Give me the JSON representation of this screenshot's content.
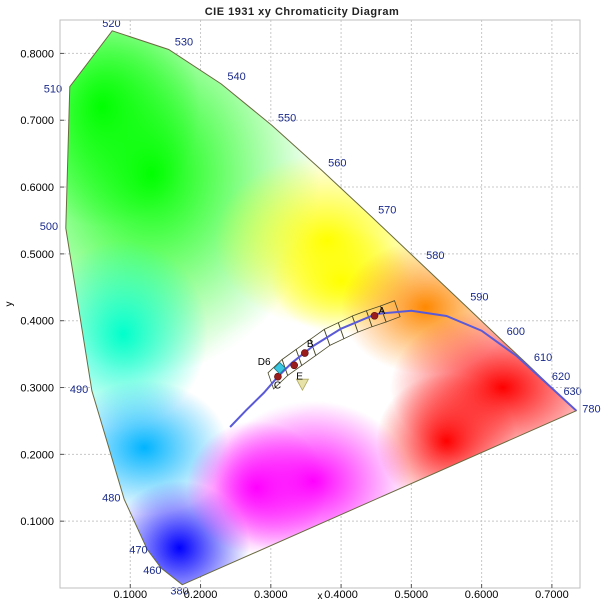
{
  "chart_data": {
    "type": "scatter",
    "title": "CIE 1931 xy Chromaticity Diagram",
    "xlabel": "x",
    "ylabel": "y",
    "xlim": [
      0.0,
      0.74
    ],
    "ylim": [
      0.0,
      0.85
    ],
    "x_ticks": [
      "0.1000",
      "0.2000",
      "0.3000",
      "0.4000",
      "0.5000",
      "0.6000",
      "0.7000"
    ],
    "y_ticks": [
      "0.1000",
      "0.2000",
      "0.3000",
      "0.4000",
      "0.5000",
      "0.6000",
      "0.7000",
      "0.8000"
    ],
    "grid": true,
    "spectral_locus": [
      {
        "nm": 380,
        "x": 0.1741,
        "y": 0.005
      },
      {
        "nm": 460,
        "x": 0.144,
        "y": 0.0297
      },
      {
        "nm": 470,
        "x": 0.1241,
        "y": 0.0578
      },
      {
        "nm": 480,
        "x": 0.0913,
        "y": 0.1327
      },
      {
        "nm": 490,
        "x": 0.0454,
        "y": 0.295
      },
      {
        "nm": 500,
        "x": 0.0082,
        "y": 0.5384
      },
      {
        "nm": 510,
        "x": 0.0139,
        "y": 0.7502
      },
      {
        "nm": 520,
        "x": 0.0743,
        "y": 0.8338
      },
      {
        "nm": 530,
        "x": 0.1547,
        "y": 0.8059
      },
      {
        "nm": 540,
        "x": 0.2296,
        "y": 0.7543
      },
      {
        "nm": 550,
        "x": 0.3016,
        "y": 0.6923
      },
      {
        "nm": 560,
        "x": 0.3731,
        "y": 0.6245
      },
      {
        "nm": 570,
        "x": 0.4441,
        "y": 0.5547
      },
      {
        "nm": 580,
        "x": 0.5125,
        "y": 0.4866
      },
      {
        "nm": 590,
        "x": 0.5752,
        "y": 0.4242
      },
      {
        "nm": 600,
        "x": 0.627,
        "y": 0.3725
      },
      {
        "nm": 610,
        "x": 0.6658,
        "y": 0.334
      },
      {
        "nm": 620,
        "x": 0.6915,
        "y": 0.3083
      },
      {
        "nm": 630,
        "x": 0.7079,
        "y": 0.292
      },
      {
        "nm": 780,
        "x": 0.7347,
        "y": 0.2653
      }
    ],
    "planckian_locus": [
      {
        "x": 0.242,
        "y": 0.241
      },
      {
        "x": 0.265,
        "y": 0.266
      },
      {
        "x": 0.29,
        "y": 0.292
      },
      {
        "x": 0.31,
        "y": 0.316
      },
      {
        "x": 0.33,
        "y": 0.337
      },
      {
        "x": 0.36,
        "y": 0.362
      },
      {
        "x": 0.4,
        "y": 0.388
      },
      {
        "x": 0.45,
        "y": 0.41
      },
      {
        "x": 0.5,
        "y": 0.415
      },
      {
        "x": 0.55,
        "y": 0.407
      },
      {
        "x": 0.6,
        "y": 0.385
      },
      {
        "x": 0.65,
        "y": 0.347
      },
      {
        "x": 0.7,
        "y": 0.299
      },
      {
        "x": 0.7347,
        "y": 0.2653
      }
    ],
    "reference_points": [
      {
        "label": "A",
        "x": 0.4476,
        "y": 0.4074,
        "color": "#9b1c1c"
      },
      {
        "label": "B",
        "x": 0.3484,
        "y": 0.3516,
        "color": "#9b1c1c"
      },
      {
        "label": "C",
        "x": 0.3101,
        "y": 0.3162,
        "color": "#9b1c1c"
      },
      {
        "label": "E",
        "x": 0.3333,
        "y": 0.3333,
        "color": "#9b1c1c"
      },
      {
        "label": "D6",
        "x": 0.3127,
        "y": 0.329,
        "color": "#39c6e0"
      }
    ],
    "marker_triangle": {
      "x": 0.345,
      "y": 0.305,
      "color": "#e6e2a8"
    }
  }
}
